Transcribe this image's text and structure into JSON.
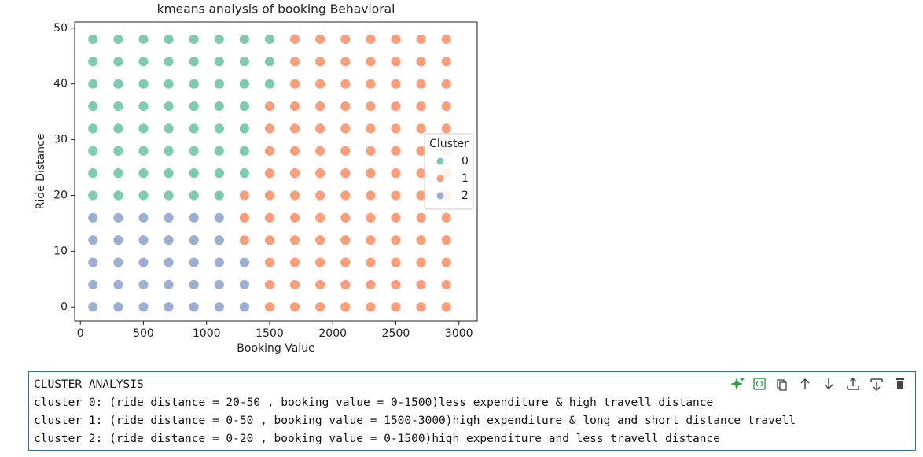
{
  "chart_data": {
    "type": "scatter",
    "title": "kmeans analysis of booking Behavioral",
    "xlabel": "Booking Value",
    "ylabel": "Ride Distance",
    "xlim": [
      -45,
      3145
    ],
    "ylim": [
      -2.5,
      51.1
    ],
    "xticks": [
      0,
      500,
      1000,
      1500,
      2000,
      2500,
      3000
    ],
    "yticks": [
      0,
      10,
      20,
      30,
      40,
      50
    ],
    "grid": false,
    "legend_title": "Cluster",
    "legend": "center right",
    "series": [
      {
        "name": "0",
        "color": "#66c2a5",
        "x": [
          100,
          300,
          500,
          700,
          900,
          1100,
          100,
          300,
          500,
          700,
          900,
          1100,
          1300,
          100,
          300,
          500,
          700,
          900,
          1100,
          1300,
          100,
          300,
          500,
          700,
          900,
          1100,
          1300,
          100,
          300,
          500,
          700,
          900,
          1100,
          1300,
          100,
          300,
          500,
          700,
          900,
          1100,
          1300,
          1500,
          100,
          300,
          500,
          700,
          900,
          1100,
          1300,
          1500,
          100,
          300,
          500,
          700,
          900,
          1100,
          1300,
          1500
        ],
        "values": [
          20,
          20,
          20,
          20,
          20,
          20,
          24,
          24,
          24,
          24,
          24,
          24,
          24,
          28,
          28,
          28,
          28,
          28,
          28,
          28,
          32,
          32,
          32,
          32,
          32,
          32,
          32,
          36,
          36,
          36,
          36,
          36,
          36,
          36,
          40,
          40,
          40,
          40,
          40,
          40,
          40,
          40,
          44,
          44,
          44,
          44,
          44,
          44,
          44,
          44,
          48,
          48,
          48,
          48,
          48,
          48,
          48,
          48
        ]
      },
      {
        "name": "1",
        "color": "#fc8d62",
        "x": [
          1500,
          1700,
          1900,
          2100,
          2300,
          2500,
          2700,
          2900,
          1500,
          1700,
          1900,
          2100,
          2300,
          2500,
          2700,
          2900,
          1500,
          1700,
          1900,
          2100,
          2300,
          2500,
          2700,
          2900,
          1300,
          1500,
          1700,
          1900,
          2100,
          2300,
          2500,
          2700,
          2900,
          1300,
          1500,
          1700,
          1900,
          2100,
          2300,
          2500,
          2700,
          2900,
          1300,
          1500,
          1700,
          1900,
          2100,
          2300,
          2500,
          2700,
          2900,
          1500,
          1700,
          1900,
          2100,
          2300,
          2500,
          2700,
          2900,
          1500,
          1700,
          1900,
          2100,
          2300,
          2500,
          2700,
          2900,
          1500,
          1700,
          1900,
          2100,
          2300,
          2500,
          2700,
          2900,
          1500,
          1700,
          1900,
          2100,
          2300,
          2500,
          2700,
          2900,
          1700,
          1900,
          2100,
          2300,
          2500,
          2700,
          2900,
          1700,
          1900,
          2100,
          2300,
          2500,
          2700,
          2900,
          1700,
          1900,
          2100,
          2300,
          2500,
          2700,
          2900
        ],
        "values": [
          0,
          0,
          0,
          0,
          0,
          0,
          0,
          0,
          4,
          4,
          4,
          4,
          4,
          4,
          4,
          4,
          8,
          8,
          8,
          8,
          8,
          8,
          8,
          8,
          12,
          12,
          12,
          12,
          12,
          12,
          12,
          12,
          12,
          16,
          16,
          16,
          16,
          16,
          16,
          16,
          16,
          16,
          20,
          20,
          20,
          20,
          20,
          20,
          20,
          20,
          20,
          24,
          24,
          24,
          24,
          24,
          24,
          24,
          24,
          28,
          28,
          28,
          28,
          28,
          28,
          28,
          28,
          32,
          32,
          32,
          32,
          32,
          32,
          32,
          32,
          36,
          36,
          36,
          36,
          36,
          36,
          36,
          36,
          40,
          40,
          40,
          40,
          40,
          40,
          40,
          44,
          44,
          44,
          44,
          44,
          44,
          44,
          48,
          48,
          48,
          48,
          48,
          48,
          48
        ]
      },
      {
        "name": "2",
        "color": "#8da0cb",
        "x": [
          100,
          300,
          500,
          700,
          900,
          1100,
          1300,
          100,
          300,
          500,
          700,
          900,
          1100,
          1300,
          100,
          300,
          500,
          700,
          900,
          1100,
          1300,
          100,
          300,
          500,
          700,
          900,
          1100,
          100,
          300,
          500,
          700,
          900,
          1100
        ],
        "values": [
          0,
          0,
          0,
          0,
          0,
          0,
          0,
          4,
          4,
          4,
          4,
          4,
          4,
          4,
          8,
          8,
          8,
          8,
          8,
          8,
          8,
          12,
          12,
          12,
          12,
          12,
          12,
          16,
          16,
          16,
          16,
          16,
          16
        ]
      }
    ]
  },
  "cell": {
    "lines": [
      "CLUSTER ANALYSIS",
      "cluster 0: (ride distance = 20-50 , booking value = 0-1500)less expenditure & high travell distance",
      "cluster 1: (ride distance = 0-50 , booking value = 1500-3000)high expenditure & long and short distance travell",
      "cluster 2: (ride distance = 0-20 , booking value = 0-1500)high expenditure and less travell distance"
    ]
  }
}
